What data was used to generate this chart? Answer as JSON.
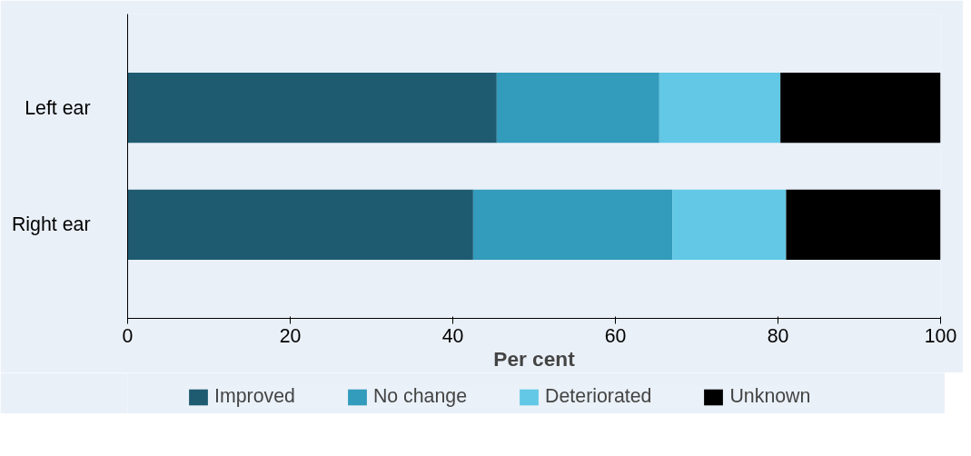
{
  "chart_data": {
    "type": "bar",
    "orientation": "horizontal",
    "stacked": true,
    "categories": [
      "Left ear",
      "Right ear"
    ],
    "xlabel": "Per cent",
    "series": [
      {
        "name": "Improved",
        "color": "#1f5b70",
        "values": [
          45.4,
          42.5
        ]
      },
      {
        "name": "No change",
        "color": "#339bbb",
        "values": [
          20.0,
          24.5
        ]
      },
      {
        "name": "Deteriorated",
        "color": "#62c8e6",
        "values": [
          14.9,
          14.0
        ]
      },
      {
        "name": "Unknown",
        "color": "#000000",
        "values": [
          19.7,
          19.0
        ]
      }
    ],
    "xlim": [
      0,
      100
    ],
    "xticks": [
      0,
      20,
      40,
      60,
      80,
      100
    ],
    "grid": false,
    "legend": "bottom"
  }
}
